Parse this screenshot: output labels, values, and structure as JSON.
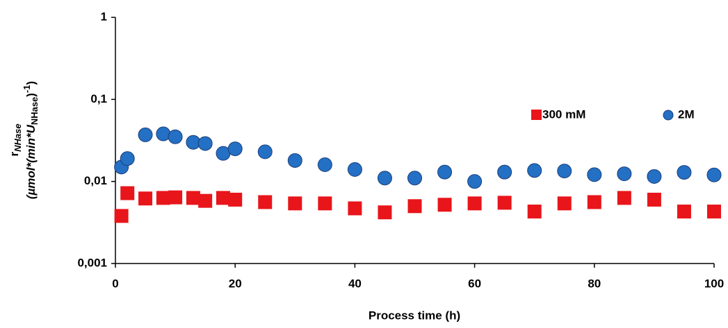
{
  "chart_data": {
    "type": "scatter",
    "xlabel": "Process  time (h)",
    "ylabel": {
      "symbol": "r",
      "symbol_sub": "NHase",
      "unit_open": "(µmol*(min*U",
      "unit_sub": "NHase",
      "unit_mid": ")",
      "unit_sup": "-1",
      "unit_close": ")"
    },
    "x": [
      1,
      2,
      5,
      8,
      10,
      13,
      15,
      18,
      20,
      25,
      30,
      35,
      40,
      45,
      50,
      55,
      60,
      65,
      70,
      75,
      80,
      85,
      90,
      95,
      100
    ],
    "series": [
      {
        "name": "300 mM",
        "color": "#e8151b",
        "marker": "square",
        "values": [
          0.0038,
          0.0072,
          0.0062,
          0.0063,
          0.0064,
          0.0063,
          0.0058,
          0.0063,
          0.006,
          0.0056,
          0.0054,
          0.0054,
          0.0047,
          0.0042,
          0.005,
          0.0052,
          0.0054,
          0.0055,
          0.0043,
          0.0054,
          0.0056,
          0.0063,
          0.006,
          0.0043,
          0.0043
        ]
      },
      {
        "name": "2M",
        "color": "#2370c4",
        "marker": "circle",
        "values": [
          0.015,
          0.019,
          0.037,
          0.038,
          0.035,
          0.03,
          0.029,
          0.022,
          0.025,
          0.023,
          0.018,
          0.016,
          0.014,
          0.011,
          0.011,
          0.013,
          0.01,
          0.013,
          0.0136,
          0.0134,
          0.0121,
          0.0124,
          0.0115,
          0.0129,
          0.012
        ]
      }
    ],
    "xlim": [
      0,
      100
    ],
    "xticks": [
      0,
      20,
      40,
      60,
      80,
      100
    ],
    "ylim": [
      0.001,
      1
    ],
    "yticks": [
      {
        "value": 0.001,
        "label": "0,001"
      },
      {
        "value": 0.01,
        "label": "0,01"
      },
      {
        "value": 0.1,
        "label": "0,1"
      },
      1
    ],
    "ylog": true,
    "grid": false,
    "legend": "upper right"
  }
}
